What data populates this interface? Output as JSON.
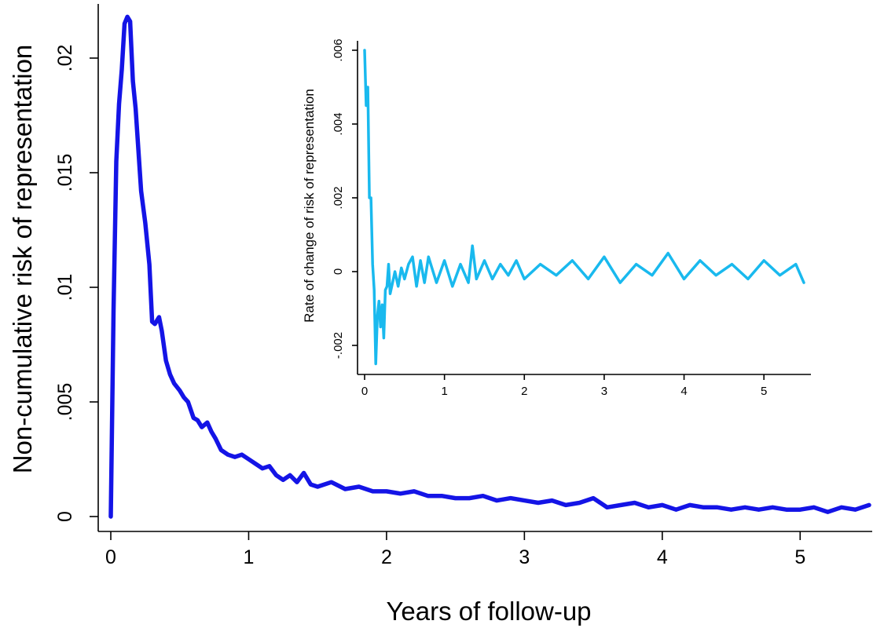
{
  "chart_data": [
    {
      "id": "main",
      "type": "line",
      "xlabel": "Years of follow-up",
      "ylabel": "Non-cumulative risk of representation",
      "xlim": [
        0,
        5.5
      ],
      "ylim": [
        0,
        0.022
      ],
      "x_ticks": [
        0,
        1,
        2,
        3,
        4,
        5
      ],
      "x_tick_labels": [
        "0",
        "1",
        "2",
        "3",
        "4",
        "5"
      ],
      "y_ticks": [
        0,
        0.005,
        0.01,
        0.015,
        0.02
      ],
      "y_tick_labels": [
        "0",
        ".005",
        ".01",
        ".015",
        ".02"
      ],
      "grid": false,
      "color": "#1414e6",
      "series": [
        {
          "x": [
            0.0,
            0.02,
            0.04,
            0.06,
            0.08,
            0.1,
            0.12,
            0.14,
            0.16,
            0.18,
            0.2,
            0.22,
            0.25,
            0.28,
            0.3,
            0.32,
            0.35,
            0.37,
            0.4,
            0.43,
            0.46,
            0.5,
            0.53,
            0.56,
            0.6,
            0.63,
            0.66,
            0.7,
            0.73,
            0.76,
            0.8,
            0.85,
            0.9,
            0.95,
            1.0,
            1.05,
            1.1,
            1.15,
            1.2,
            1.25,
            1.3,
            1.35,
            1.4,
            1.45,
            1.5,
            1.6,
            1.7,
            1.8,
            1.9,
            2.0,
            2.1,
            2.2,
            2.3,
            2.4,
            2.5,
            2.6,
            2.7,
            2.8,
            2.9,
            3.0,
            3.1,
            3.2,
            3.3,
            3.4,
            3.5,
            3.6,
            3.7,
            3.8,
            3.9,
            4.0,
            4.1,
            4.2,
            4.3,
            4.4,
            4.5,
            4.6,
            4.7,
            4.8,
            4.9,
            5.0,
            5.1,
            5.2,
            5.3,
            5.4,
            5.5
          ],
          "y": [
            0.0,
            0.009,
            0.0155,
            0.018,
            0.0195,
            0.0215,
            0.0218,
            0.0216,
            0.019,
            0.0178,
            0.016,
            0.0142,
            0.0128,
            0.011,
            0.0085,
            0.0084,
            0.0087,
            0.0081,
            0.0068,
            0.0062,
            0.0058,
            0.0055,
            0.0052,
            0.005,
            0.0043,
            0.0042,
            0.0039,
            0.0041,
            0.0037,
            0.0034,
            0.0029,
            0.0027,
            0.0026,
            0.0027,
            0.0025,
            0.0023,
            0.0021,
            0.0022,
            0.0018,
            0.0016,
            0.0018,
            0.0015,
            0.0019,
            0.0014,
            0.0013,
            0.0015,
            0.0012,
            0.0013,
            0.0011,
            0.0011,
            0.001,
            0.0011,
            0.0009,
            0.0009,
            0.0008,
            0.0008,
            0.0009,
            0.0007,
            0.0008,
            0.0007,
            0.0006,
            0.0007,
            0.0005,
            0.0006,
            0.0008,
            0.0004,
            0.0005,
            0.0006,
            0.0004,
            0.0005,
            0.0003,
            0.0005,
            0.0004,
            0.0004,
            0.0003,
            0.0004,
            0.0003,
            0.0004,
            0.0003,
            0.0003,
            0.0004,
            0.0002,
            0.0004,
            0.0003,
            0.0005
          ]
        }
      ]
    },
    {
      "id": "inset",
      "type": "line",
      "xlabel": "",
      "ylabel": "Rate of change of risk of representation",
      "xlim": [
        0,
        5.5
      ],
      "ylim": [
        -0.0025,
        0.006
      ],
      "x_ticks": [
        0,
        1,
        2,
        3,
        4,
        5
      ],
      "x_tick_labels": [
        "0",
        "1",
        "2",
        "3",
        "4",
        "5"
      ],
      "y_ticks": [
        -0.002,
        0,
        0.002,
        0.004,
        0.006
      ],
      "y_tick_labels": [
        "-.002",
        "0",
        ".002",
        ".004",
        ".006"
      ],
      "grid": false,
      "color": "#19b9ee",
      "series": [
        {
          "x": [
            0.0,
            0.02,
            0.04,
            0.06,
            0.08,
            0.1,
            0.12,
            0.14,
            0.16,
            0.18,
            0.2,
            0.22,
            0.24,
            0.26,
            0.28,
            0.3,
            0.32,
            0.35,
            0.38,
            0.42,
            0.46,
            0.5,
            0.55,
            0.6,
            0.65,
            0.7,
            0.75,
            0.8,
            0.9,
            1.0,
            1.1,
            1.2,
            1.3,
            1.35,
            1.4,
            1.5,
            1.6,
            1.7,
            1.8,
            1.9,
            2.0,
            2.2,
            2.4,
            2.6,
            2.8,
            3.0,
            3.2,
            3.4,
            3.6,
            3.8,
            4.0,
            4.2,
            4.4,
            4.6,
            4.8,
            5.0,
            5.2,
            5.4,
            5.5
          ],
          "y": [
            0.006,
            0.0045,
            0.005,
            0.002,
            0.002,
            0.0002,
            -0.0005,
            -0.0025,
            -0.0012,
            -0.0008,
            -0.0015,
            -0.0009,
            -0.0018,
            -0.0005,
            -0.0004,
            0.0002,
            -0.0006,
            -0.0003,
            0.0,
            -0.0004,
            0.0001,
            -0.0002,
            0.0002,
            0.0004,
            -0.0004,
            0.0003,
            -0.0003,
            0.0004,
            -0.0003,
            0.0003,
            -0.0004,
            0.0002,
            -0.0003,
            0.0007,
            -0.0002,
            0.0003,
            -0.0002,
            0.0002,
            -0.0001,
            0.0003,
            -0.0002,
            0.0002,
            -0.0001,
            0.0003,
            -0.0002,
            0.0004,
            -0.0003,
            0.0002,
            -0.0001,
            0.0005,
            -0.0002,
            0.0003,
            -0.0001,
            0.0002,
            -0.0002,
            0.0003,
            -0.0001,
            0.0002,
            -0.0003
          ]
        }
      ]
    }
  ]
}
